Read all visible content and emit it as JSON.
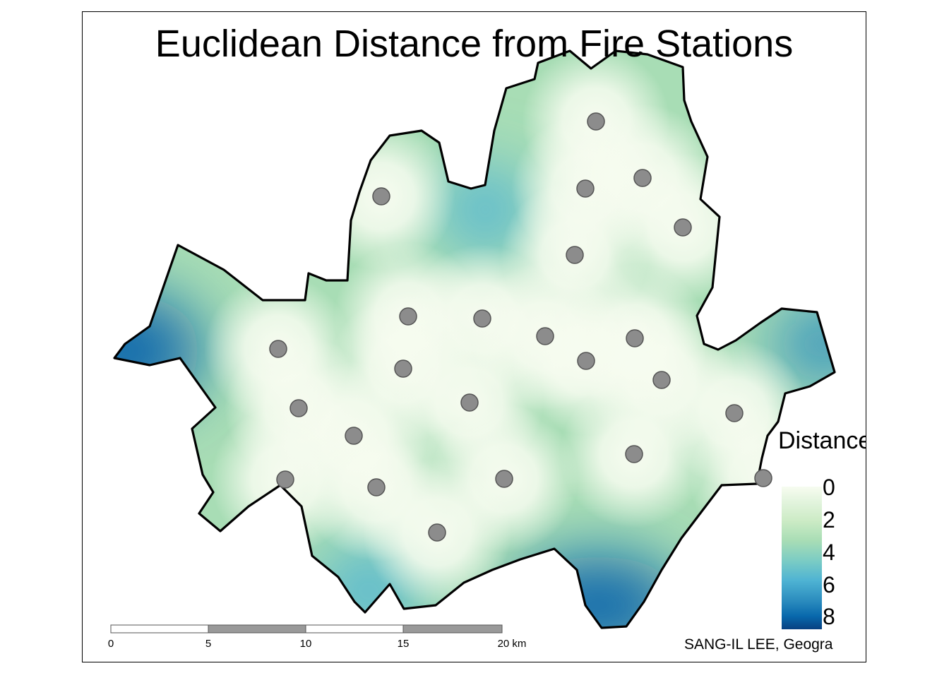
{
  "title": "Euclidean Distance from Fire Stations",
  "legend": {
    "title": "Distance(km)",
    "ticks": [
      "0",
      "2",
      "4",
      "6",
      "8"
    ],
    "colors": [
      "#f7fcf0",
      "#ccebc5",
      "#7bccc4",
      "#2b8cbe",
      "#084081"
    ]
  },
  "scale_bar": {
    "labels": [
      "0",
      "5",
      "10",
      "15",
      "20 km"
    ],
    "colors": [
      "#ffffff",
      "#999999"
    ]
  },
  "credit": "SANG-IL LEE, Geogra",
  "station_marker_color": "#8c8c8c"
}
